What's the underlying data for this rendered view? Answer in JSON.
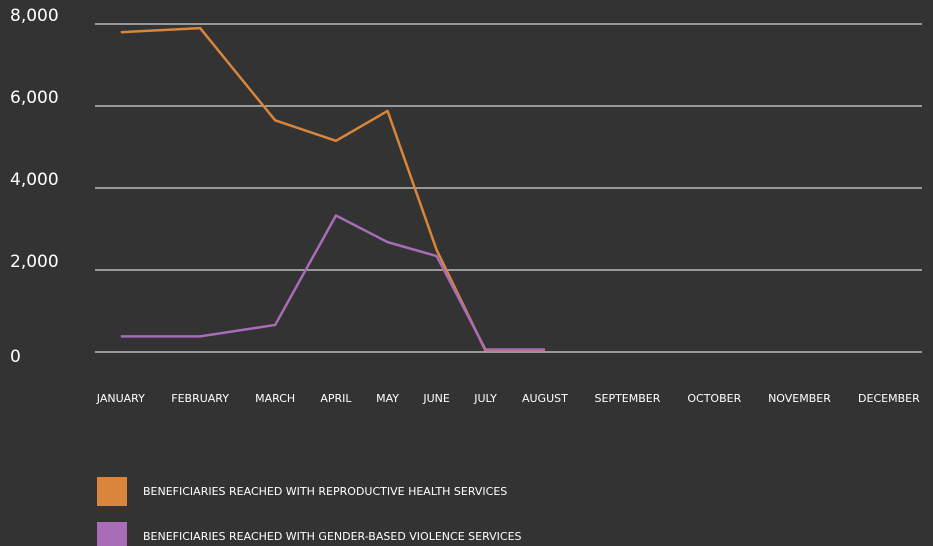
{
  "chart_data": {
    "type": "line",
    "categories": [
      "JANUARY",
      "FEBRUARY",
      "MARCH",
      "APRIL",
      "MAY",
      "JUNE",
      "JULY",
      "AUGUST",
      "SEPTEMBER",
      "OCTOBER",
      "NOVEMBER",
      "DECEMBER"
    ],
    "series": [
      {
        "name": "BENEFICIARIES REACHED WITH REPRODUCTIVE HEALTH SERVICES",
        "color": "#d9853b",
        "values": [
          7800,
          7900,
          5650,
          5150,
          5880,
          2490,
          30,
          30,
          null,
          null,
          null,
          null
        ]
      },
      {
        "name": "BENEFICIARIES REACHED WITH GENDER-BASED VIOLENCE SERVICES",
        "color": "#a86cb8",
        "values": [
          380,
          380,
          660,
          3330,
          2680,
          2340,
          60,
          60,
          null,
          null,
          null,
          null
        ]
      }
    ],
    "ylim": [
      0,
      8000
    ],
    "yticks": [
      0,
      {
        "value": 2000,
        "label": "2,000"
      },
      {
        "value": 4000,
        "label": "4,000"
      },
      {
        "value": 6000,
        "label": "6,000"
      },
      {
        "value": 8000,
        "label": "8,000"
      }
    ],
    "grid": true
  }
}
